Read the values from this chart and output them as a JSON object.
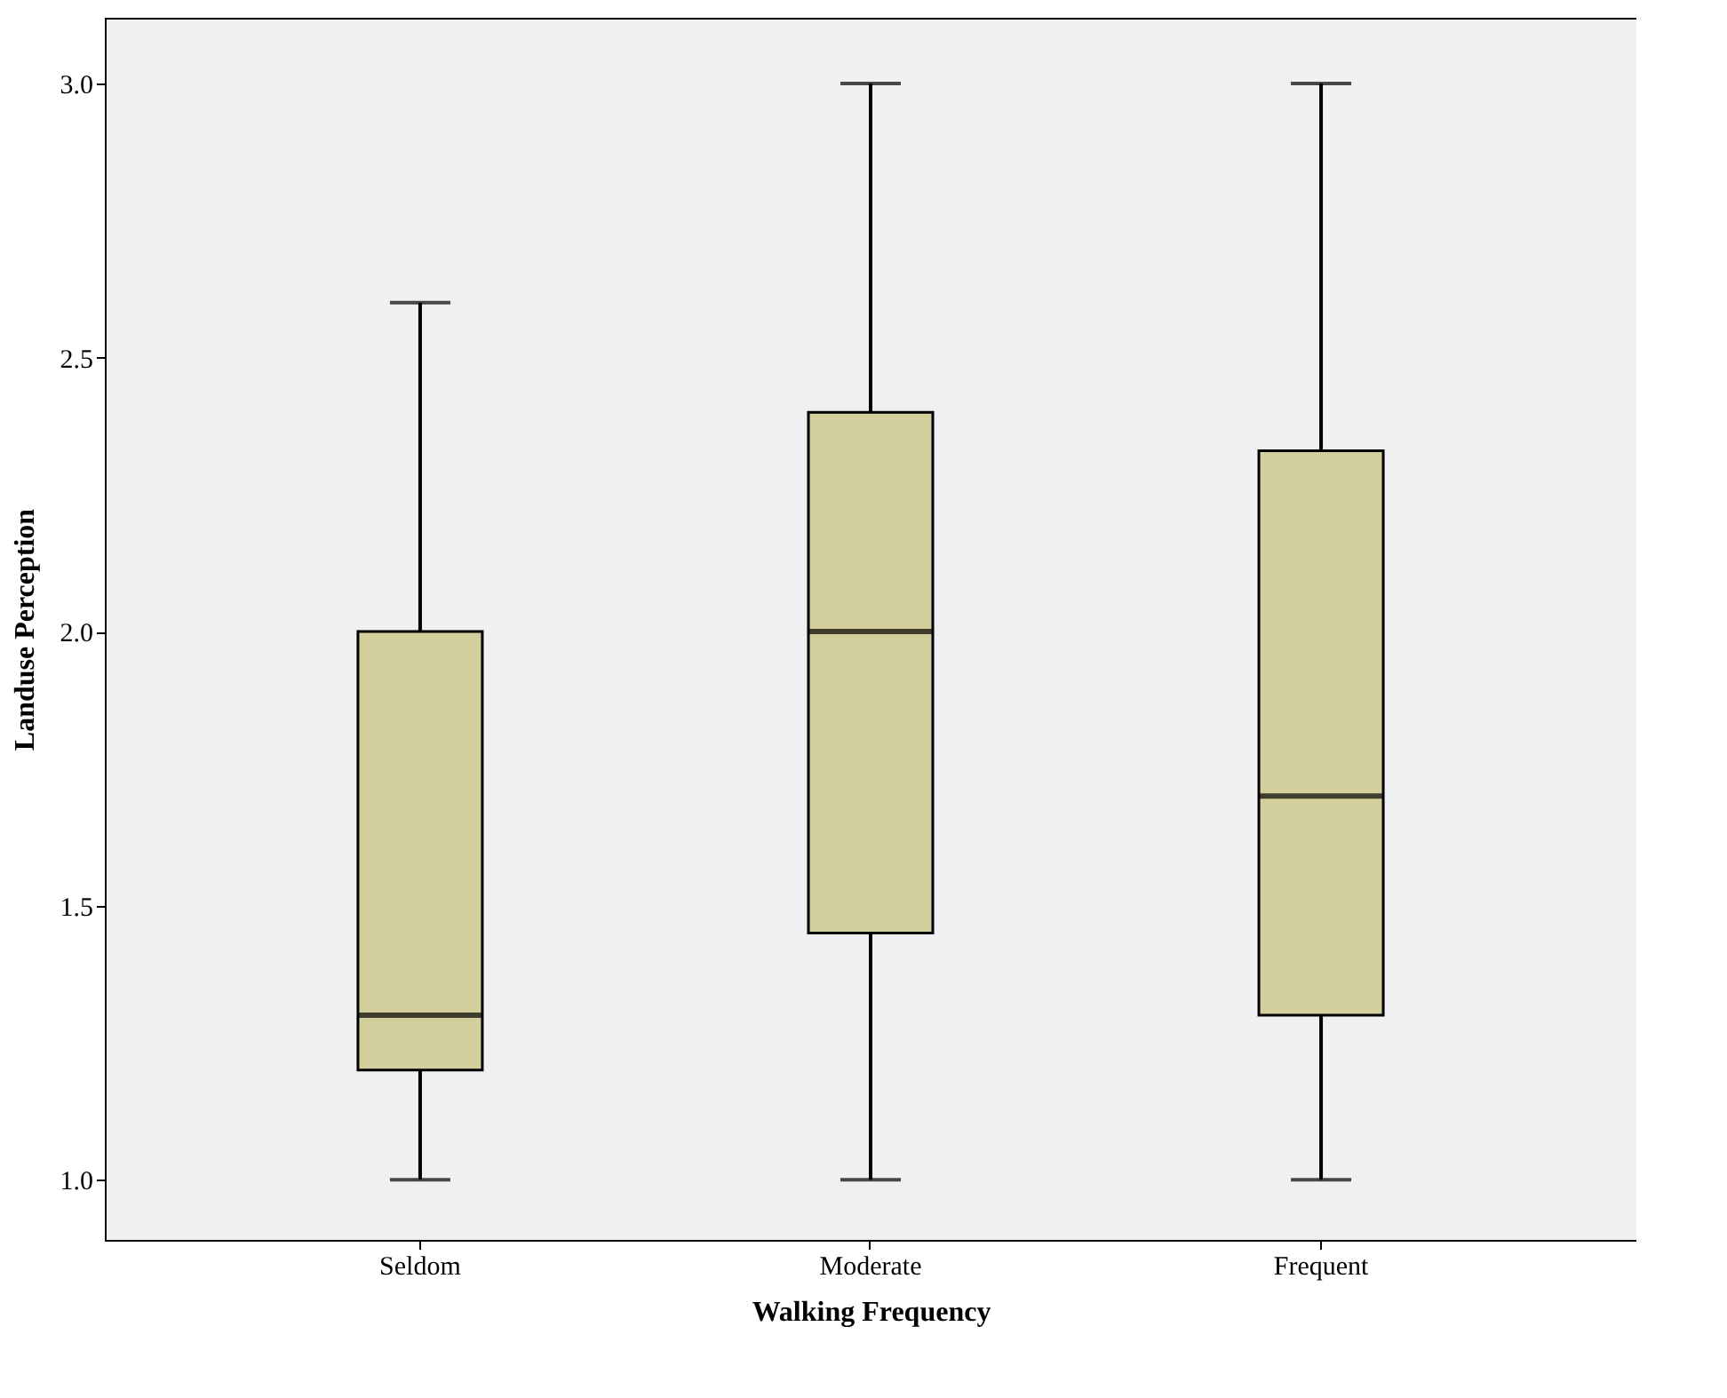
{
  "chart_data": {
    "type": "box",
    "xlabel": "Walking Frequency",
    "ylabel": "Landuse Perception",
    "categories": [
      "Seldom",
      "Moderate",
      "Frequent"
    ],
    "boxes": [
      {
        "low": 1.0,
        "q1": 1.2,
        "median": 1.3,
        "q3": 2.0,
        "high": 2.6
      },
      {
        "low": 1.0,
        "q1": 1.45,
        "median": 2.0,
        "q3": 2.4,
        "high": 3.0
      },
      {
        "low": 1.0,
        "q1": 1.3,
        "median": 1.7,
        "q3": 2.33,
        "high": 3.0
      }
    ],
    "color": "#d3cf9c",
    "ylim": [
      0.89,
      3.12
    ],
    "yticks": [
      {
        "value": 1.0,
        "label": "1.0"
      },
      {
        "value": 1.5,
        "label": "1.5"
      },
      {
        "value": 2.0,
        "label": "2.0"
      },
      {
        "value": 2.5,
        "label": "2.5"
      },
      {
        "value": 3.0,
        "label": "3.0"
      }
    ],
    "grid": false
  }
}
